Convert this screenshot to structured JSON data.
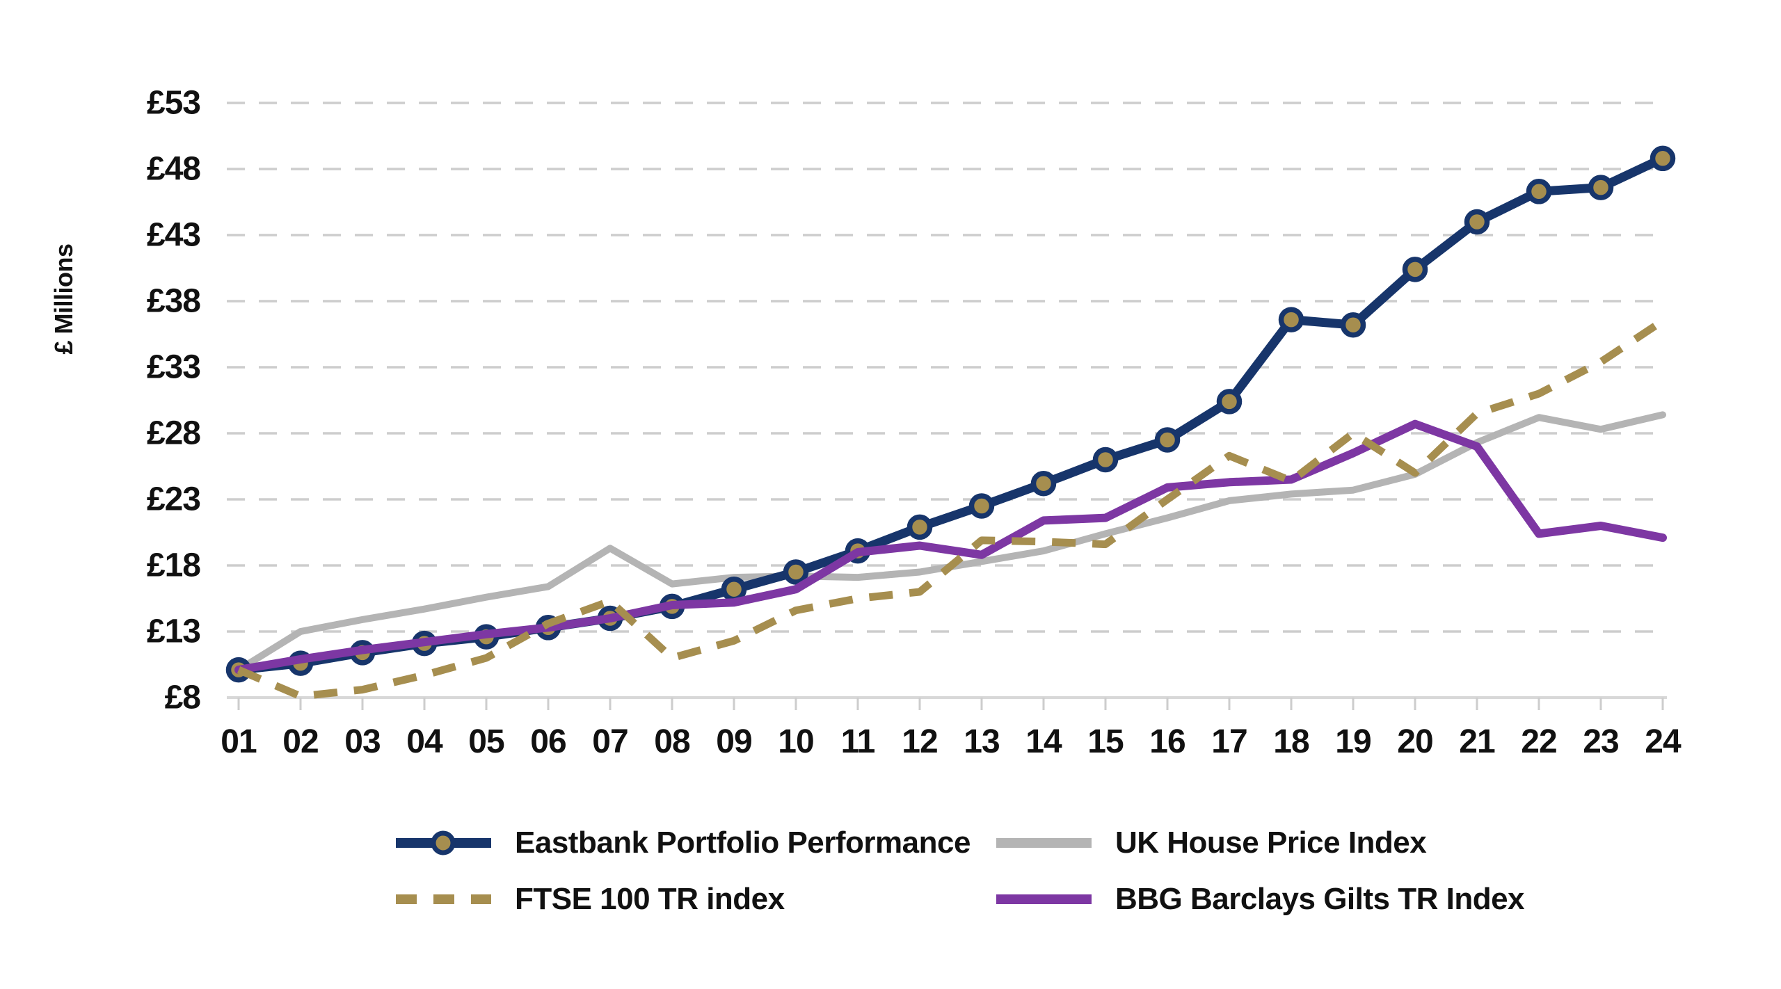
{
  "chart_data": {
    "type": "line",
    "title": "",
    "xlabel": "",
    "ylabel": "£ Millions",
    "ylim": [
      8,
      53
    ],
    "grid": "horizontal-dashed",
    "legend_position": "bottom-two-columns",
    "background_color": "#ffffff",
    "gridline_color": "#cdcdcd",
    "axis_line_color": "#d8d8d8",
    "text_color": "#111111",
    "categories": [
      "01",
      "02",
      "03",
      "04",
      "05",
      "06",
      "07",
      "08",
      "09",
      "10",
      "11",
      "12",
      "13",
      "14",
      "15",
      "16",
      "17",
      "18",
      "19",
      "20",
      "21",
      "22",
      "23",
      "24"
    ],
    "y_ticks": [
      {
        "label": "£8",
        "value": 8
      },
      {
        "label": "£13",
        "value": 13
      },
      {
        "label": "£18",
        "value": 18
      },
      {
        "label": "£23",
        "value": 23
      },
      {
        "label": "£28",
        "value": 28
      },
      {
        "label": "£33",
        "value": 33
      },
      {
        "label": "£38",
        "value": 38
      },
      {
        "label": "£43",
        "value": 43
      },
      {
        "label": "£48",
        "value": 48
      },
      {
        "label": "£53",
        "value": 53
      }
    ],
    "series": [
      {
        "name": "Eastbank Portfolio Performance",
        "color": "#17356b",
        "style": "solid",
        "marker": "circle",
        "marker_fill": "#a68e4f",
        "values": [
          10.1,
          10.6,
          11.4,
          12.1,
          12.6,
          13.3,
          14.0,
          14.9,
          16.2,
          17.5,
          19.1,
          20.9,
          22.5,
          24.2,
          26.0,
          27.5,
          30.4,
          36.6,
          36.2,
          40.4,
          44.0,
          46.3,
          46.6,
          48.8
        ]
      },
      {
        "name": "FTSE 100 TR index",
        "color": "#a68e4f",
        "style": "dashed",
        "marker": "none",
        "values": [
          10.1,
          8.1,
          8.6,
          9.7,
          11.0,
          13.6,
          15.3,
          11.0,
          12.3,
          14.6,
          15.5,
          16.0,
          19.9,
          19.8,
          19.6,
          23.0,
          26.3,
          24.4,
          28.0,
          25.0,
          29.5,
          31.0,
          33.4,
          36.5
        ]
      },
      {
        "name": "UK House Price Index",
        "color": "#b4b4b4",
        "style": "solid",
        "marker": "none",
        "values": [
          10.1,
          13.0,
          13.9,
          14.7,
          15.6,
          16.4,
          19.3,
          16.6,
          17.1,
          17.2,
          17.1,
          17.5,
          18.3,
          19.1,
          20.4,
          21.6,
          22.9,
          23.4,
          23.7,
          24.9,
          27.3,
          29.2,
          28.3,
          29.4
        ]
      },
      {
        "name": "BBG Barclays Gilts TR Index",
        "color": "#7d37a3",
        "style": "solid",
        "marker": "none",
        "values": [
          10.1,
          10.9,
          11.6,
          12.2,
          12.8,
          13.3,
          14.0,
          15.0,
          15.2,
          16.2,
          19.0,
          19.5,
          18.8,
          21.4,
          21.6,
          23.9,
          24.3,
          24.5,
          26.5,
          28.7,
          27.0,
          20.4,
          21.0,
          20.1
        ]
      }
    ]
  }
}
